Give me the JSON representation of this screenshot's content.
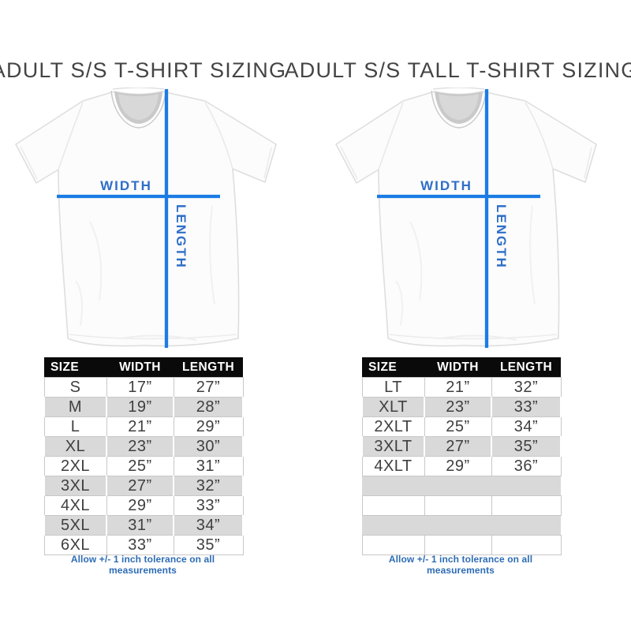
{
  "page_background": "#ffffff",
  "colors": {
    "measure_line_blue": "#1c7ce4",
    "diagram_label_blue": "#2f6ec8",
    "note_blue": "#2d6cb5",
    "table_header_bg": "#0a0a0a",
    "table_header_text": "#ffffff",
    "row_alt_gray": "#d9d9d9",
    "title_gray": "#444444"
  },
  "chart_data": [
    {
      "type": "table",
      "title": "ADULT S/S T-SHIRT SIZING",
      "diagram_labels": {
        "width": "WIDTH",
        "length": "LENGTH"
      },
      "columns": [
        "SIZE",
        "WIDTH",
        "LENGTH"
      ],
      "rows": [
        [
          "S",
          "17”",
          "27”"
        ],
        [
          "M",
          "19”",
          "28”"
        ],
        [
          "L",
          "21”",
          "29”"
        ],
        [
          "XL",
          "23”",
          "30”"
        ],
        [
          "2XL",
          "25”",
          "31”"
        ],
        [
          "3XL",
          "27”",
          "32”"
        ],
        [
          "4XL",
          "29”",
          "33”"
        ],
        [
          "5XL",
          "31”",
          "34”"
        ],
        [
          "6XL",
          "33”",
          "35”"
        ]
      ],
      "note": "Allow +/- 1 inch tolerance on all measurements"
    },
    {
      "type": "table",
      "title": "ADULT S/S TALL T-SHIRT SIZING",
      "diagram_labels": {
        "width": "WIDTH",
        "length": "LENGTH"
      },
      "columns": [
        "SIZE",
        "WIDTH",
        "LENGTH"
      ],
      "rows": [
        [
          "LT",
          "21”",
          "32”"
        ],
        [
          "XLT",
          "23”",
          "33”"
        ],
        [
          "2XLT",
          "25”",
          "34”"
        ],
        [
          "3XLT",
          "27”",
          "35”"
        ],
        [
          "4XLT",
          "29”",
          "36”"
        ],
        [
          "",
          "",
          ""
        ],
        [
          "",
          "",
          ""
        ],
        [
          "",
          "",
          ""
        ],
        [
          "",
          "",
          ""
        ]
      ],
      "note": "Allow +/- 1 inch tolerance on all measurements"
    }
  ]
}
